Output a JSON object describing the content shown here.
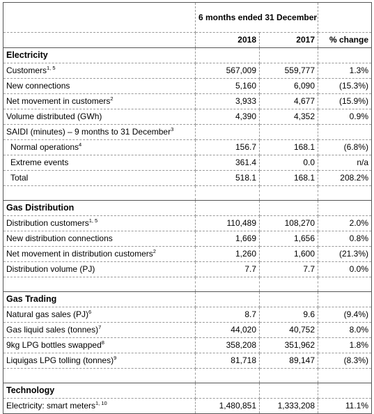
{
  "header": {
    "period_label": "6 months ended 31 December",
    "col_2018": "2018",
    "col_2017": "2017",
    "col_change": "% change"
  },
  "sections": [
    {
      "id": "electricity",
      "title": "Electricity",
      "rows": [
        {
          "label": "Customers",
          "sup": "1, 5",
          "v2018": "567,009",
          "v2017": "559,777",
          "change": "1.3%"
        },
        {
          "label": "New connections",
          "sup": "",
          "v2018": "5,160",
          "v2017": "6,090",
          "change": "(15.3%)"
        },
        {
          "label": "Net movement in customers",
          "sup": "2",
          "v2018": "3,933",
          "v2017": "4,677",
          "change": "(15.9%)"
        },
        {
          "label": "Volume distributed (GWh)",
          "sup": "",
          "v2018": "4,390",
          "v2017": "4,352",
          "change": "0.9%"
        },
        {
          "label": "SAIDI (minutes) – 9 months to 31 December",
          "sup": "3",
          "v2018": "",
          "v2017": "",
          "change": "",
          "span": true
        },
        {
          "label": "Normal operations",
          "sup": "4",
          "v2018": "156.7",
          "v2017": "168.1",
          "change": "(6.8%)",
          "indent": true
        },
        {
          "label": "Extreme events",
          "sup": "",
          "v2018": "361.4",
          "v2017": "0.0",
          "change": "n/a",
          "indent": true
        },
        {
          "label": "Total",
          "sup": "",
          "v2018": "518.1",
          "v2017": "168.1",
          "change": "208.2%",
          "indent": true
        }
      ]
    },
    {
      "id": "gas-distribution",
      "title": "Gas Distribution",
      "rows": [
        {
          "label": "Distribution customers",
          "sup": "1, 5",
          "v2018": "110,489",
          "v2017": "108,270",
          "change": "2.0%"
        },
        {
          "label": "New distribution connections",
          "sup": "",
          "v2018": "1,669",
          "v2017": "1,656",
          "change": "0.8%"
        },
        {
          "label": "Net movement in distribution customers",
          "sup": "2",
          "v2018": "1,260",
          "v2017": "1,600",
          "change": "(21.3%)"
        },
        {
          "label": "Distribution volume (PJ)",
          "sup": "",
          "v2018": "7.7",
          "v2017": "7.7",
          "change": "0.0%"
        }
      ]
    },
    {
      "id": "gas-trading",
      "title": "Gas Trading",
      "rows": [
        {
          "label": "Natural gas sales (PJ)",
          "sup": "6",
          "v2018": "8.7",
          "v2017": "9.6",
          "change": "(9.4%)"
        },
        {
          "label": "Gas liquid sales (tonnes)",
          "sup": "7",
          "v2018": "44,020",
          "v2017": "40,752",
          "change": "8.0%"
        },
        {
          "label": "9kg LPG bottles swapped",
          "sup": "8",
          "v2018": "358,208",
          "v2017": "351,962",
          "change": "1.8%"
        },
        {
          "label": "Liquigas LPG tolling (tonnes)",
          "sup": "9",
          "v2018": "81,718",
          "v2017": "89,147",
          "change": "(8.3%)"
        }
      ]
    },
    {
      "id": "technology",
      "title": "Technology",
      "rows": [
        {
          "label": "Electricity: smart meters",
          "sup": "1, 10",
          "v2018": "1,480,851",
          "v2017": "1,333,208",
          "change": "11.1%"
        }
      ]
    }
  ]
}
